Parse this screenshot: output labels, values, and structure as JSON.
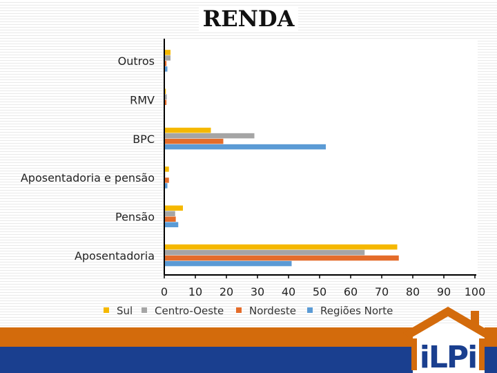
{
  "chart_data": {
    "type": "bar",
    "orientation": "horizontal",
    "title": "RENDA",
    "categories": [
      "Outros",
      "RMV",
      "BPC",
      "Aposentadoria e pensão",
      "Pensão",
      "Aposentadoria"
    ],
    "series": [
      {
        "name": "Sul",
        "color": "#f5b800",
        "values": [
          2,
          0.5,
          15,
          1.5,
          6,
          75
        ]
      },
      {
        "name": "Centro-Oeste",
        "color": "#a5a5a5",
        "values": [
          2,
          0.8,
          29,
          0.3,
          3.5,
          64.5
        ]
      },
      {
        "name": "Nordeste",
        "color": "#e46c2a",
        "values": [
          0.7,
          0.7,
          19,
          1.5,
          3.7,
          75.5
        ]
      },
      {
        "name": "Regiões Norte",
        "color": "#5b9bd5",
        "values": [
          1,
          0,
          52,
          1,
          4.5,
          41
        ]
      }
    ],
    "xlim": [
      0,
      100
    ],
    "xticks": [
      "0",
      "10",
      "20",
      "30",
      "40",
      "50",
      "60",
      "70",
      "80",
      "90",
      "100"
    ],
    "grid": false,
    "legend_position": "bottom"
  },
  "logo": {
    "text": "iLPi",
    "roof_color": "#d36b0c",
    "text_color": "#1a3f8f"
  }
}
